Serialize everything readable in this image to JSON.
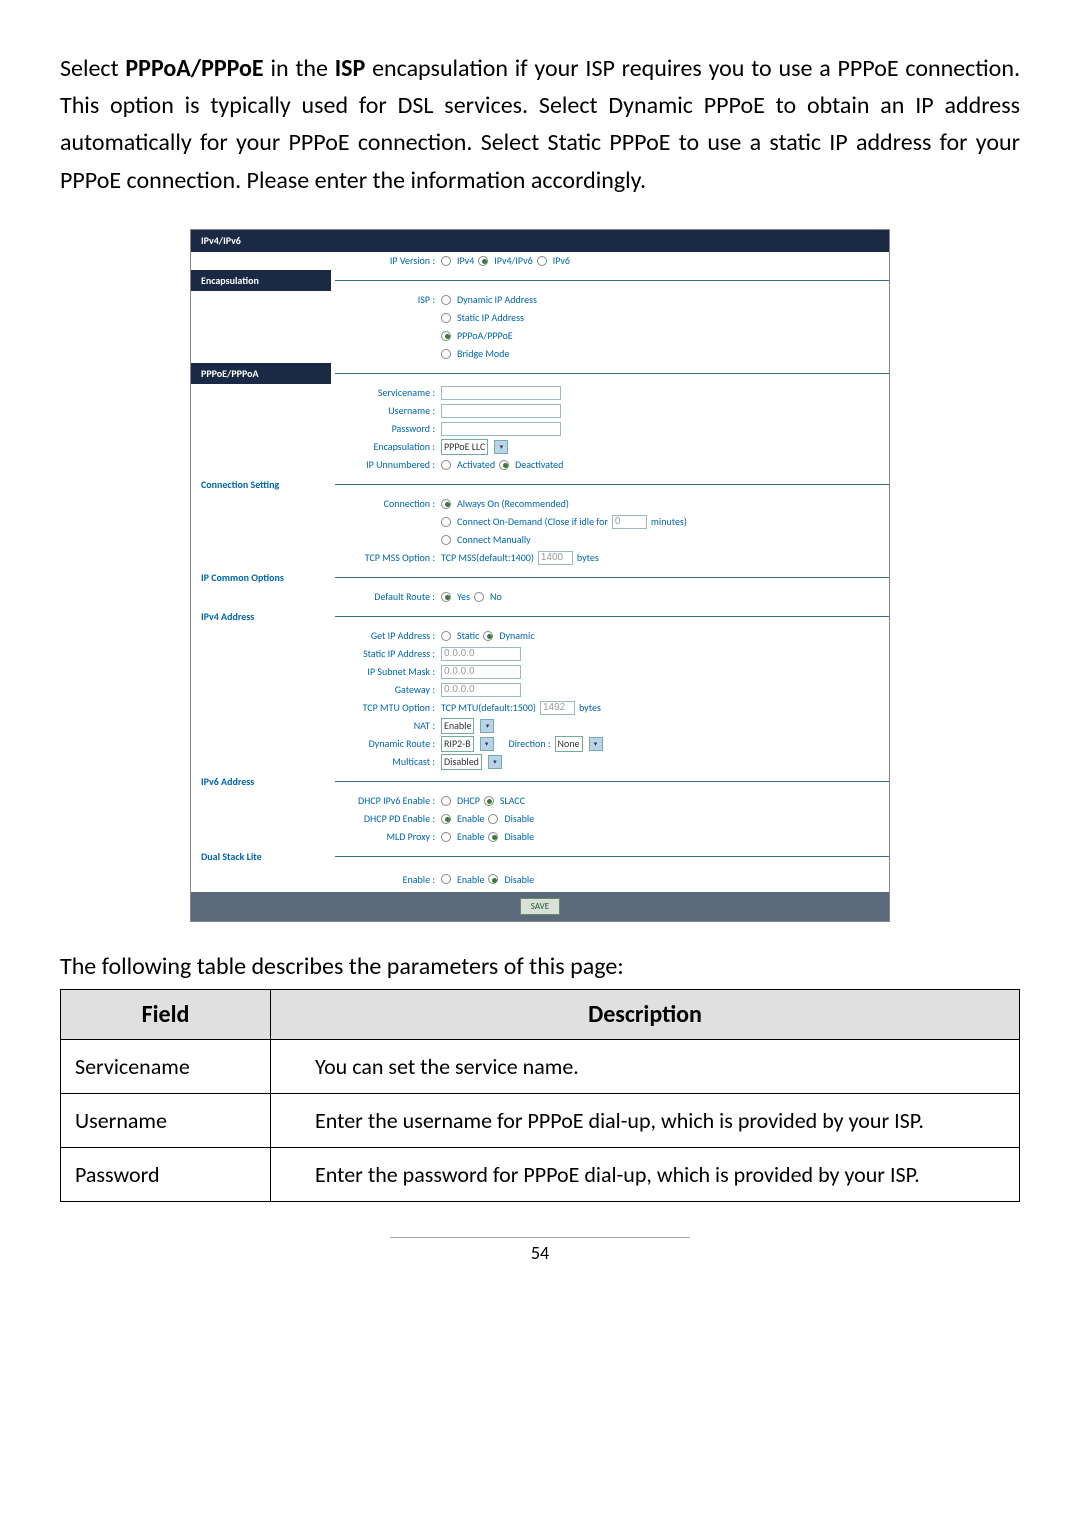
{
  "intro_html": "Select <b>PPPoA/PPPoE</b> in the <b>ISP</b> encapsulation if your ISP requires you to use a PPPoE connection. This option is typically used for DSL services. Select Dynamic PPPoE to obtain an IP address automatically for your PPPoE connection. Select Static PPPoE to use a static IP address for your PPPoE connection. Please enter the information accordingly.",
  "router": {
    "sec_ipv4ipv6": "IPv4/IPv6",
    "ip_version_label": "IP Version :",
    "ip_version_opts": [
      "IPv4",
      "IPv4/IPv6",
      "IPv6"
    ],
    "sec_encap": "Encapsulation",
    "isp_label": "ISP :",
    "isp_opts": [
      "Dynamic IP Address",
      "Static IP Address",
      "PPPoA/PPPoE",
      "Bridge Mode"
    ],
    "sec_pppoe": "PPPoE/PPPoA",
    "servicename_label": "Servicename :",
    "username_label": "Username :",
    "password_label": "Password :",
    "encapsulation_label": "Encapsulation :",
    "encapsulation_value": "PPPoE LLC",
    "ip_unnumbered_label": "IP Unnumbered :",
    "ip_unnumbered_opts": [
      "Activated",
      "Deactivated"
    ],
    "sec_conn": "Connection Setting",
    "connection_label": "Connection :",
    "conn_always": "Always On (Recommended)",
    "conn_ondemand_pre": "Connect On-Demand (Close if idle for",
    "conn_ondemand_val": "0",
    "conn_ondemand_post": "minutes)",
    "conn_manual": "Connect Manually",
    "tcp_mss_label": "TCP MSS Option :",
    "tcp_mss_text": "TCP MSS(default:1400)",
    "tcp_mss_val": "1400",
    "bytes": "bytes",
    "sec_ipcommon": "IP Common Options",
    "default_route_label": "Default Route :",
    "yes": "Yes",
    "no": "No",
    "sec_ipv4addr": "IPv4 Address",
    "get_ip_label": "Get IP Address :",
    "get_ip_opts": [
      "Static",
      "Dynamic"
    ],
    "static_ip_label": "Static IP Address :",
    "static_ip_val": "0.0.0.0",
    "subnet_label": "IP Subnet Mask :",
    "subnet_val": "0.0.0.0",
    "gateway_label": "Gateway :",
    "gateway_val": "0.0.0.0",
    "tcp_mtu_label": "TCP MTU Option :",
    "tcp_mtu_text": "TCP MTU(default:1500)",
    "tcp_mtu_val": "1492",
    "nat_label": "NAT :",
    "nat_val": "Enable",
    "dynroute_label": "Dynamic Route :",
    "dynroute_val": "RIP2-B",
    "direction_label": "Direction :",
    "direction_val": "None",
    "multicast_label": "Multicast :",
    "multicast_val": "Disabled",
    "sec_ipv6addr": "IPv6 Address",
    "dhcp_ipv6_label": "DHCP IPv6 Enable :",
    "dhcp_ipv6_opts": [
      "DHCP",
      "SLACC"
    ],
    "dhcp_pd_label": "DHCP PD Enable :",
    "enable": "Enable",
    "disable": "Disable",
    "mld_proxy_label": "MLD Proxy :",
    "sec_dualstack": "Dual Stack Lite",
    "ds_enable_label": "Enable :",
    "save": "SAVE"
  },
  "table_intro": "The following table describes the parameters of this page:",
  "table": {
    "h1": "Field",
    "h2": "Description",
    "rows": [
      {
        "f": "Servicename",
        "d": "You can set the service name."
      },
      {
        "f": "Username",
        "d": "Enter the username for PPPoE dial-up, which is provided by your ISP."
      },
      {
        "f": "Password",
        "d": "Enter the password for PPPoE dial-up, which is provided by your ISP."
      }
    ]
  },
  "page_num": "54"
}
